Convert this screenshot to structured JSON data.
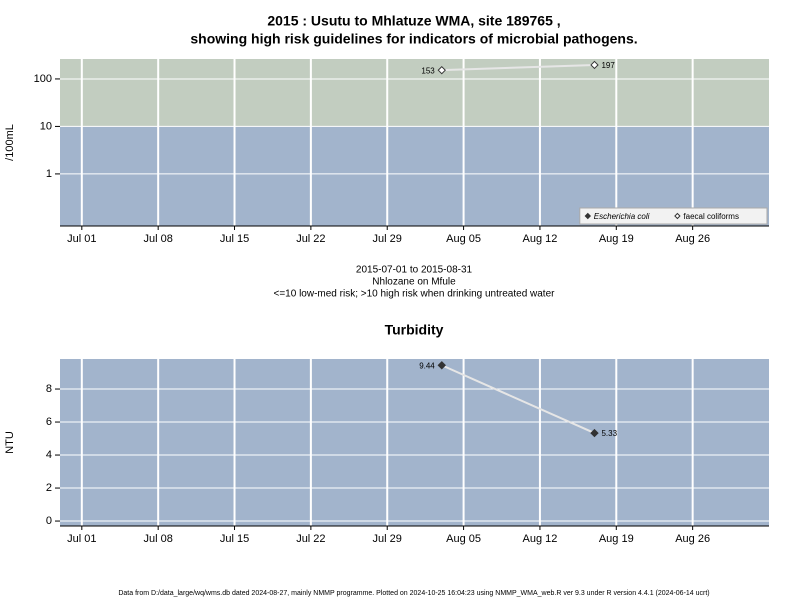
{
  "chart_data": [
    {
      "type": "line",
      "title": [
        "2015 : Usutu to Mhlatuze WMA, site 189765 ,",
        "showing high risk guidelines for indicators of microbial pathogens."
      ],
      "ylabel": "/100mL",
      "log_y": true,
      "x": [
        "Aug 03",
        "Aug 17"
      ],
      "series": [
        {
          "name": "Escherichia coli",
          "font_style": "italic",
          "marker": "filled-diamond",
          "color": "#333333",
          "line_color": "#e6e6e6",
          "values": [
            null,
            null
          ]
        },
        {
          "name": "faecal coliforms",
          "marker": "open-diamond",
          "color": "#333333",
          "line_color": "#e6e6e6",
          "values": [
            153,
            197
          ]
        }
      ],
      "xlim": [
        "Jun 29",
        "Sep 02"
      ],
      "xticks": [
        "Jul 01",
        "Jul 08",
        "Jul 15",
        "Jul 22",
        "Jul 29",
        "Aug 05",
        "Aug 12",
        "Aug 19",
        "Aug 26"
      ],
      "ylim": [
        0.08,
        263
      ],
      "yticks": [
        1,
        10,
        100
      ],
      "threshold": 10,
      "band_colors": [
        "#a2b4cc",
        "#c2cdc0"
      ],
      "grid": true,
      "legend": "bottom right",
      "notes": [
        "2015-07-01 to 2015-08-31",
        "Nhlozane on Mfule",
        "<=10 low-med risk; >10 high risk when drinking untreated water"
      ]
    },
    {
      "type": "line",
      "title": [
        "Turbidity"
      ],
      "ylabel": "NTU",
      "x": [
        "Aug 03",
        "Aug 17"
      ],
      "values": [
        9.44,
        5.33
      ],
      "marker": "filled-diamond",
      "color": "#333333",
      "line_color": "#e6e6e6",
      "xlim": [
        "Jun 29",
        "Sep 02"
      ],
      "xticks": [
        "Jul 01",
        "Jul 08",
        "Jul 15",
        "Jul 22",
        "Jul 29",
        "Aug 05",
        "Aug 12",
        "Aug 19",
        "Aug 26"
      ],
      "ylim": [
        -0.3,
        9.82
      ],
      "yticks": [
        0,
        2,
        4,
        6,
        8
      ],
      "background": "#a2b4cc",
      "grid": true
    }
  ],
  "footer": "Data from D:/data_large/wq/wms.db dated 2024-08-27, mainly NMMP programme. Plotted on 2024-10-25 16:04:23 using NMMP_WMA_web.R ver 9.3 under R version 4.4.1 (2024-06-14 ucrt)"
}
